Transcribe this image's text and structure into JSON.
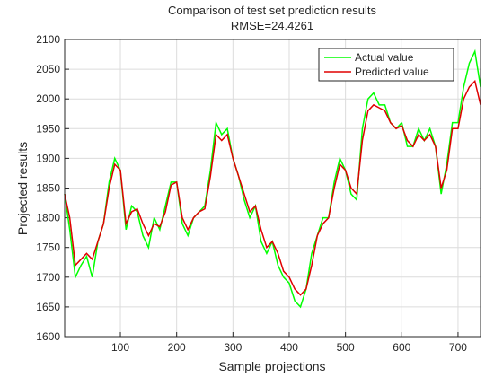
{
  "chart_data": {
    "type": "line",
    "title": "Comparison of test set prediction results",
    "subtitle": "RMSE=24.4261",
    "x_label": "Sample projections",
    "y_label": "Projected results",
    "x": [
      1,
      10,
      20,
      30,
      40,
      50,
      60,
      70,
      80,
      90,
      100,
      110,
      120,
      130,
      140,
      150,
      160,
      170,
      180,
      190,
      200,
      210,
      220,
      230,
      240,
      250,
      260,
      270,
      280,
      290,
      300,
      310,
      320,
      330,
      340,
      350,
      360,
      370,
      380,
      390,
      400,
      410,
      420,
      430,
      440,
      450,
      460,
      470,
      480,
      490,
      500,
      510,
      520,
      530,
      540,
      550,
      560,
      570,
      580,
      590,
      600,
      610,
      620,
      630,
      640,
      650,
      660,
      670,
      680,
      690,
      700,
      710,
      720,
      730,
      740
    ],
    "series": [
      {
        "name": "Actual value",
        "color": "#00ff00",
        "values": [
          1840,
          1780,
          1700,
          1720,
          1735,
          1700,
          1760,
          1790,
          1860,
          1900,
          1880,
          1780,
          1820,
          1810,
          1770,
          1750,
          1800,
          1780,
          1820,
          1860,
          1860,
          1790,
          1770,
          1800,
          1810,
          1820,
          1880,
          1960,
          1940,
          1950,
          1900,
          1870,
          1830,
          1800,
          1820,
          1760,
          1740,
          1760,
          1720,
          1700,
          1690,
          1660,
          1650,
          1680,
          1740,
          1770,
          1800,
          1800,
          1860,
          1900,
          1880,
          1840,
          1830,
          1950,
          2000,
          2010,
          1990,
          1990,
          1960,
          1950,
          1960,
          1920,
          1920,
          1950,
          1930,
          1950,
          1920,
          1840,
          1890,
          1960,
          1960,
          2020,
          2060,
          2080,
          2020
        ]
      },
      {
        "name": "Predicted value",
        "color": "#e00000",
        "values": [
          1840,
          1800,
          1720,
          1730,
          1740,
          1730,
          1760,
          1790,
          1850,
          1890,
          1880,
          1790,
          1810,
          1815,
          1790,
          1770,
          1790,
          1785,
          1810,
          1855,
          1860,
          1800,
          1780,
          1800,
          1810,
          1815,
          1870,
          1940,
          1930,
          1940,
          1900,
          1870,
          1840,
          1810,
          1820,
          1780,
          1750,
          1760,
          1740,
          1710,
          1700,
          1680,
          1670,
          1680,
          1720,
          1770,
          1790,
          1800,
          1850,
          1890,
          1880,
          1850,
          1840,
          1930,
          1980,
          1990,
          1985,
          1980,
          1960,
          1950,
          1955,
          1930,
          1920,
          1940,
          1930,
          1940,
          1920,
          1850,
          1880,
          1950,
          1950,
          2000,
          2020,
          2030,
          1990
        ]
      }
    ],
    "xlim": [
      1,
      740
    ],
    "xticks": [
      100,
      200,
      300,
      400,
      500,
      600,
      700
    ],
    "ylim": [
      1600,
      2100
    ],
    "yticks": [
      1600,
      1650,
      1700,
      1750,
      1800,
      1850,
      1900,
      1950,
      2000,
      2050,
      2100
    ],
    "grid": true,
    "legend": "top-right"
  }
}
